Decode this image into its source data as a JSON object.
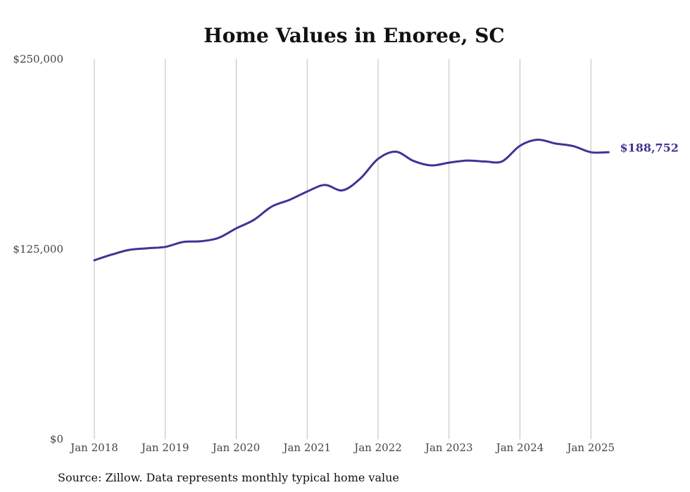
{
  "chart_data": {
    "type": "line",
    "title": "Home Values in Enoree, SC",
    "source": "Source: Zillow. Data represents monthly typical home value",
    "ylim": [
      0,
      250000
    ],
    "y_ticks": [
      {
        "value": 0,
        "label": "$0"
      },
      {
        "value": 125000,
        "label": "$125,000"
      },
      {
        "value": 250000,
        "label": "$250,000"
      }
    ],
    "x_ticks": [
      {
        "value": "2018-01",
        "label": "Jan 2018"
      },
      {
        "value": "2019-01",
        "label": "Jan 2019"
      },
      {
        "value": "2020-01",
        "label": "Jan 2020"
      },
      {
        "value": "2021-01",
        "label": "Jan 2021"
      },
      {
        "value": "2022-01",
        "label": "Jan 2022"
      },
      {
        "value": "2023-01",
        "label": "Jan 2023"
      },
      {
        "value": "2024-01",
        "label": "Jan 2024"
      },
      {
        "value": "2025-01",
        "label": "Jan 2025"
      }
    ],
    "grid": {
      "vertical": true,
      "horizontal": false
    },
    "line_color": "#3d3596",
    "end_label": "$188,752",
    "series": [
      {
        "x": [
          "2018-01",
          "2018-04",
          "2018-07",
          "2018-10",
          "2019-01",
          "2019-04",
          "2019-07",
          "2019-10",
          "2020-01",
          "2020-04",
          "2020-07",
          "2020-10",
          "2021-01",
          "2021-04",
          "2021-07",
          "2021-10",
          "2022-01",
          "2022-04",
          "2022-07",
          "2022-10",
          "2023-01",
          "2023-04",
          "2023-07",
          "2023-10",
          "2024-01",
          "2024-04",
          "2024-07",
          "2024-10",
          "2025-01",
          "2025-04"
        ],
        "y": [
          117700,
          121500,
          124600,
          125600,
          126500,
          129700,
          130200,
          132400,
          138700,
          144300,
          153000,
          157400,
          162900,
          167200,
          163700,
          171500,
          184400,
          189100,
          183000,
          180100,
          181900,
          183300,
          182700,
          182800,
          193000,
          197000,
          194500,
          192800,
          188752,
          188752
        ]
      }
    ]
  }
}
